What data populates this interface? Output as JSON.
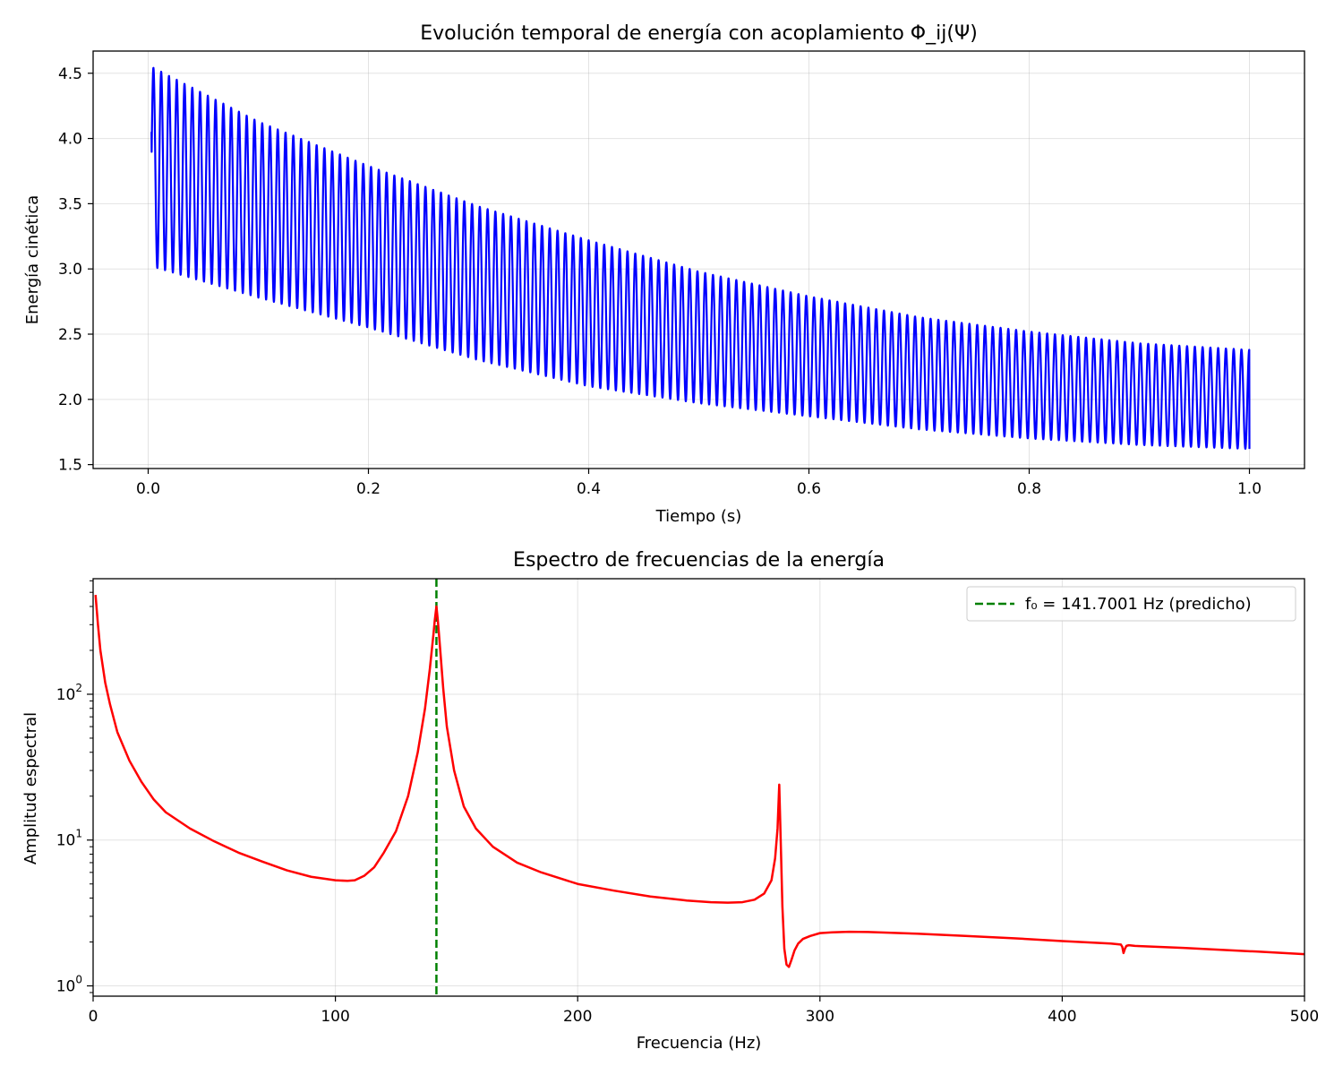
{
  "chart_data": [
    {
      "type": "line",
      "title": "Evolución temporal de energía con acoplamiento Φ_ij(Ψ)",
      "xlabel": "Tiempo (s)",
      "ylabel": "Energía cinética",
      "xlim": [
        -0.05,
        1.05
      ],
      "ylim": [
        1.47,
        4.67
      ],
      "xticks": [
        0.0,
        0.2,
        0.4,
        0.6,
        0.8,
        1.0
      ],
      "xtick_labels": [
        "0.0",
        "0.2",
        "0.4",
        "0.6",
        "0.8",
        "1.0"
      ],
      "yticks": [
        1.5,
        2.0,
        2.5,
        3.0,
        3.5,
        4.0,
        4.5
      ],
      "ytick_labels": [
        "1.5",
        "2.0",
        "2.5",
        "3.0",
        "3.5",
        "4.0",
        "4.5"
      ],
      "grid": true,
      "series": [
        {
          "color": "#0000ff",
          "oscillation": {
            "t_range": [
              0.003,
              1.0
            ],
            "frequency_hz": 141.7,
            "start": [
              0.003,
              4.05
            ],
            "end": [
              1.0,
              1.62
            ],
            "envelope_upper": [
              [
                0.003,
                4.55
              ],
              [
                0.1,
                4.13
              ],
              [
                0.2,
                3.79
              ],
              [
                0.3,
                3.48
              ],
              [
                0.4,
                3.22
              ],
              [
                0.5,
                2.98
              ],
              [
                0.6,
                2.79
              ],
              [
                0.7,
                2.63
              ],
              [
                0.8,
                2.52
              ],
              [
                0.9,
                2.43
              ],
              [
                1.0,
                2.38
              ]
            ],
            "envelope_lower": [
              [
                0.003,
                3.02
              ],
              [
                0.1,
                2.78
              ],
              [
                0.2,
                2.55
              ],
              [
                0.3,
                2.3
              ],
              [
                0.4,
                2.1
              ],
              [
                0.5,
                1.97
              ],
              [
                0.6,
                1.87
              ],
              [
                0.7,
                1.77
              ],
              [
                0.8,
                1.7
              ],
              [
                0.9,
                1.65
              ],
              [
                1.0,
                1.62
              ]
            ]
          }
        }
      ]
    },
    {
      "type": "line",
      "title": "Espectro de frecuencias de la energía",
      "xlabel": "Frecuencia (Hz)",
      "ylabel": "Amplitud espectral",
      "xlim": [
        0,
        500
      ],
      "ylim": [
        0.85,
        620
      ],
      "yscale": "log",
      "xticks": [
        0,
        100,
        200,
        300,
        400,
        500
      ],
      "xtick_labels": [
        "0",
        "100",
        "200",
        "300",
        "400",
        "500"
      ],
      "yticks": [
        1,
        10,
        100
      ],
      "ytick_labels": [
        {
          "base": "10",
          "exp": "0"
        },
        {
          "base": "10",
          "exp": "1"
        },
        {
          "base": "10",
          "exp": "2"
        }
      ],
      "grid": true,
      "legend_position": "top-right",
      "series": [
        {
          "color": "#ff0000",
          "x": [
            1,
            2,
            3,
            5,
            7,
            10,
            15,
            20,
            25,
            30,
            40,
            50,
            60,
            70,
            80,
            90,
            100,
            105,
            108,
            112,
            116,
            120,
            125,
            130,
            134,
            137,
            139,
            140.5,
            141,
            141.7,
            142.3,
            143,
            144.5,
            146,
            149,
            153,
            158,
            165,
            175,
            185,
            200,
            215,
            230,
            245,
            255,
            262,
            268,
            273,
            277,
            280,
            281.5,
            282.5,
            283.2,
            283.8,
            284.5,
            285.3,
            286.2,
            287.2,
            288.2,
            289.5,
            291,
            293,
            296,
            300,
            305,
            312,
            320,
            340,
            360,
            380,
            400,
            420,
            424.2,
            424.8,
            425.3,
            425.9,
            426.5,
            427.5,
            430,
            450,
            480,
            500
          ],
          "y": [
            480,
            300,
            200,
            120,
            85,
            55,
            35,
            25,
            19,
            15.5,
            12,
            9.8,
            8.2,
            7.1,
            6.2,
            5.6,
            5.3,
            5.25,
            5.3,
            5.7,
            6.5,
            8.2,
            11.5,
            20,
            40,
            80,
            150,
            260,
            320,
            400,
            320,
            230,
            110,
            60,
            30,
            17,
            12,
            9,
            7,
            6,
            5,
            4.5,
            4.1,
            3.85,
            3.75,
            3.72,
            3.75,
            3.9,
            4.3,
            5.3,
            7.5,
            12,
            24,
            10,
            3.5,
            1.8,
            1.4,
            1.35,
            1.5,
            1.75,
            1.95,
            2.1,
            2.2,
            2.3,
            2.33,
            2.35,
            2.34,
            2.28,
            2.2,
            2.12,
            2.03,
            1.95,
            1.92,
            1.85,
            1.68,
            1.8,
            1.88,
            1.9,
            1.88,
            1.82,
            1.72,
            1.65
          ]
        }
      ],
      "reference_line": {
        "x": 141.7001,
        "color": "#008000",
        "style": "dashed",
        "label": "f₀ = 141.7001 Hz (predicho)"
      }
    }
  ]
}
